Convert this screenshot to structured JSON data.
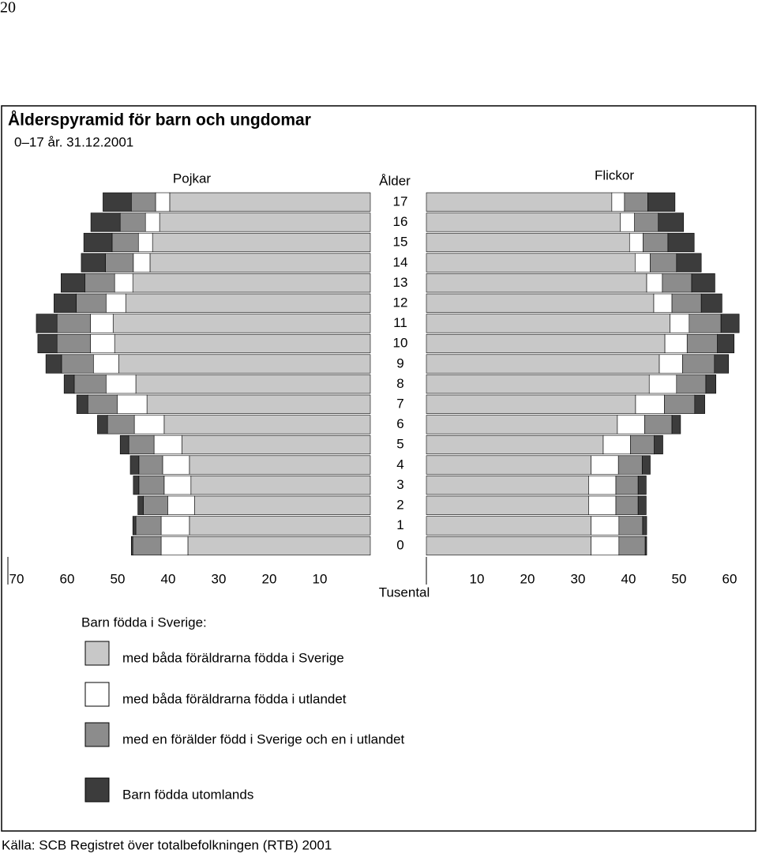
{
  "page_number": "20",
  "chart_data": {
    "type": "pyramid",
    "title": "Ålderspyramid för barn och ungdomar",
    "subtitle": "0–17 år. 31.12.2001",
    "left_label": "Pojkar",
    "right_label": "Flickor",
    "category_label": "Ålder",
    "x_label": "Tusental",
    "legend_title": "Barn födda i Sverige:",
    "categories": [
      0,
      1,
      2,
      3,
      4,
      5,
      6,
      7,
      8,
      9,
      10,
      11,
      12,
      13,
      14,
      15,
      16,
      17
    ],
    "xlim": [
      0,
      70
    ],
    "xticks_left": [
      70,
      60,
      50,
      40,
      30,
      20,
      10
    ],
    "xticks_right": [
      10,
      20,
      30,
      40,
      50,
      60
    ],
    "series": [
      {
        "name": "med båda föräldrarna födda i Sverige",
        "color": "#c8c8c8",
        "left": [
          36.1,
          35.8,
          34.8,
          35.5,
          35.8,
          37.3,
          40.8,
          44.2,
          46.4,
          49.8,
          50.6,
          50.9,
          48.4,
          47.0,
          43.6,
          43.1,
          41.7,
          39.7
        ],
        "right": [
          32.6,
          32.6,
          32.1,
          32.1,
          32.6,
          35.0,
          37.8,
          41.4,
          44.1,
          46.1,
          47.2,
          48.2,
          45.0,
          43.6,
          41.3,
          40.2,
          38.4,
          36.7
        ]
      },
      {
        "name": "med båda föräldrarna födda i utlandet",
        "color": "#ffffff",
        "left": [
          5.3,
          5.6,
          5.3,
          5.3,
          5.3,
          5.5,
          5.9,
          5.9,
          5.9,
          5.0,
          4.8,
          4.5,
          3.9,
          3.6,
          3.3,
          2.8,
          2.8,
          2.8
        ],
        "right": [
          5.5,
          5.5,
          5.4,
          5.4,
          5.4,
          5.4,
          5.4,
          5.7,
          5.4,
          4.6,
          4.4,
          3.8,
          3.6,
          3.1,
          3.0,
          2.7,
          2.8,
          2.5
        ]
      },
      {
        "name": "med en förälder född i Sverige och en i utlandet",
        "color": "#8c8c8c",
        "left": [
          5.6,
          5.0,
          4.8,
          5.0,
          4.7,
          5.0,
          5.3,
          5.8,
          6.3,
          6.3,
          6.6,
          6.6,
          5.9,
          5.9,
          5.5,
          5.2,
          5.0,
          4.8
        ],
        "right": [
          5.2,
          4.7,
          4.4,
          4.4,
          4.7,
          4.7,
          5.4,
          6.0,
          5.8,
          6.3,
          6.0,
          6.3,
          5.8,
          5.8,
          5.2,
          4.9,
          4.7,
          4.6
        ]
      },
      {
        "name": "Barn födda utomlands",
        "color": "#3c3c3c",
        "left": [
          0.3,
          0.6,
          1.1,
          1.1,
          1.7,
          1.7,
          2.0,
          2.2,
          2.0,
          3.1,
          3.8,
          4.1,
          4.4,
          4.7,
          4.8,
          5.6,
          5.8,
          5.6
        ],
        "right": [
          0.3,
          0.8,
          1.6,
          1.6,
          1.6,
          1.7,
          1.7,
          2.0,
          2.0,
          2.8,
          3.3,
          3.6,
          4.1,
          4.6,
          4.9,
          5.2,
          5.0,
          5.4
        ]
      }
    ],
    "source": "Källa: SCB Registret över  totalbefolkningen (RTB) 2001"
  }
}
